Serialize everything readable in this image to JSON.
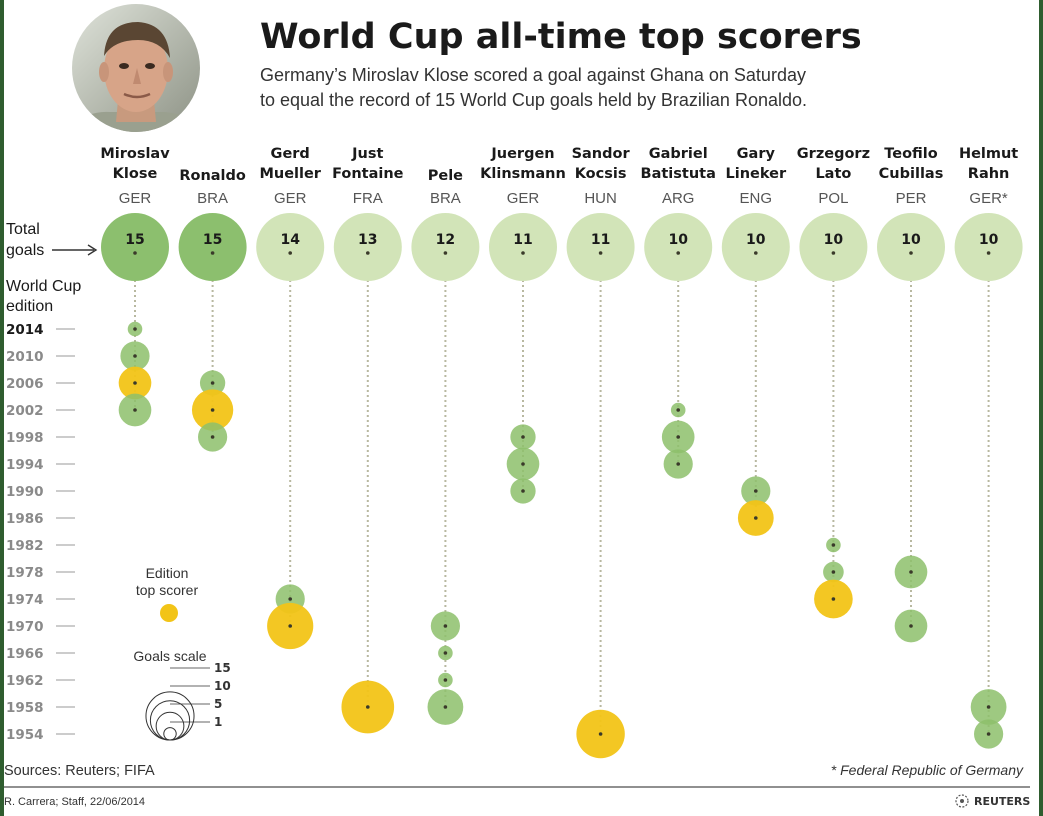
{
  "header": {
    "title": "World Cup all-time top scorers",
    "subtitle_lines": [
      "Germany’s Miroslav Klose scored a goal against Ghana on Saturday",
      "to equal the record of 15 World Cup goals held by Brazilian Ronaldo."
    ]
  },
  "labels": {
    "total_goals": [
      "Total",
      "goals"
    ],
    "edition": [
      "World Cup",
      "edition"
    ],
    "legend_top_scorer": [
      "Edition",
      "top scorer"
    ],
    "goals_scale": "Goals scale"
  },
  "footer": {
    "sources": "Sources: Reuters; FIFA",
    "footnote": "* Federal Republic of Germany",
    "credit": "R. Carrera; Staff, 22/06/2014",
    "logo_text": "REUTERS"
  },
  "colors": {
    "total_top": "#8cbf6e",
    "total_other": "#d2e4b8",
    "edition_green": "#8dbf6b",
    "top_scorer_yellow": "#f2c417",
    "dotted_line": "#b8b8a0",
    "dot": "#3a3a2a",
    "dark_bar": "#2f5d2f"
  },
  "icons": {
    "portrait": "player-portrait-photo",
    "logo": "reuters-logo-icon"
  },
  "chart_data": {
    "type": "scatter",
    "title": "World Cup all-time top scorers",
    "editions": [
      2014,
      2010,
      2006,
      2002,
      1998,
      1994,
      1990,
      1986,
      1982,
      1978,
      1974,
      1970,
      1966,
      1962,
      1958,
      1954
    ],
    "current_edition": 2014,
    "goals_scale_ticks": [
      15,
      10,
      5,
      1
    ],
    "players": [
      {
        "name_lines": [
          "Miroslav",
          "Klose"
        ],
        "country": "GER",
        "total": 15,
        "editions": [
          {
            "year": 2014,
            "goals": 1
          },
          {
            "year": 2010,
            "goals": 4
          },
          {
            "year": 2006,
            "goals": 5,
            "top": true
          },
          {
            "year": 2002,
            "goals": 5
          }
        ]
      },
      {
        "name_lines": [
          "Ronaldo"
        ],
        "country": "BRA",
        "total": 15,
        "editions": [
          {
            "year": 2006,
            "goals": 3
          },
          {
            "year": 2002,
            "goals": 8,
            "top": true
          },
          {
            "year": 1998,
            "goals": 4
          }
        ]
      },
      {
        "name_lines": [
          "Gerd",
          "Mueller"
        ],
        "country": "GER",
        "total": 14,
        "editions": [
          {
            "year": 1974,
            "goals": 4
          },
          {
            "year": 1970,
            "goals": 10,
            "top": true
          }
        ]
      },
      {
        "name_lines": [
          "Just",
          "Fontaine"
        ],
        "country": "FRA",
        "total": 13,
        "editions": [
          {
            "year": 1958,
            "goals": 13,
            "top": true
          }
        ]
      },
      {
        "name_lines": [
          "Pele"
        ],
        "country": "BRA",
        "total": 12,
        "editions": [
          {
            "year": 1970,
            "goals": 4
          },
          {
            "year": 1966,
            "goals": 1
          },
          {
            "year": 1962,
            "goals": 1
          },
          {
            "year": 1958,
            "goals": 6
          }
        ]
      },
      {
        "name_lines": [
          "Juergen",
          "Klinsmann"
        ],
        "country": "GER",
        "total": 11,
        "editions": [
          {
            "year": 1998,
            "goals": 3
          },
          {
            "year": 1994,
            "goals": 5
          },
          {
            "year": 1990,
            "goals": 3
          }
        ]
      },
      {
        "name_lines": [
          "Sandor",
          "Kocsis"
        ],
        "country": "HUN",
        "total": 11,
        "editions": [
          {
            "year": 1954,
            "goals": 11,
            "top": true
          }
        ]
      },
      {
        "name_lines": [
          "Gabriel",
          "Batistuta"
        ],
        "country": "ARG",
        "total": 10,
        "editions": [
          {
            "year": 2002,
            "goals": 1
          },
          {
            "year": 1998,
            "goals": 5
          },
          {
            "year": 1994,
            "goals": 4
          }
        ]
      },
      {
        "name_lines": [
          "Gary",
          "Lineker"
        ],
        "country": "ENG",
        "total": 10,
        "editions": [
          {
            "year": 1990,
            "goals": 4
          },
          {
            "year": 1986,
            "goals": 6,
            "top": true
          }
        ]
      },
      {
        "name_lines": [
          "Grzegorz",
          "Lato"
        ],
        "country": "POL",
        "total": 10,
        "editions": [
          {
            "year": 1982,
            "goals": 1
          },
          {
            "year": 1978,
            "goals": 2
          },
          {
            "year": 1974,
            "goals": 7,
            "top": true
          }
        ]
      },
      {
        "name_lines": [
          "Teofilo",
          "Cubillas"
        ],
        "country": "PER",
        "total": 10,
        "editions": [
          {
            "year": 1978,
            "goals": 5
          },
          {
            "year": 1970,
            "goals": 5
          }
        ]
      },
      {
        "name_lines": [
          "Helmut",
          "Rahn"
        ],
        "country": "GER*",
        "total": 10,
        "editions": [
          {
            "year": 1958,
            "goals": 6
          },
          {
            "year": 1954,
            "goals": 4
          }
        ]
      }
    ]
  }
}
